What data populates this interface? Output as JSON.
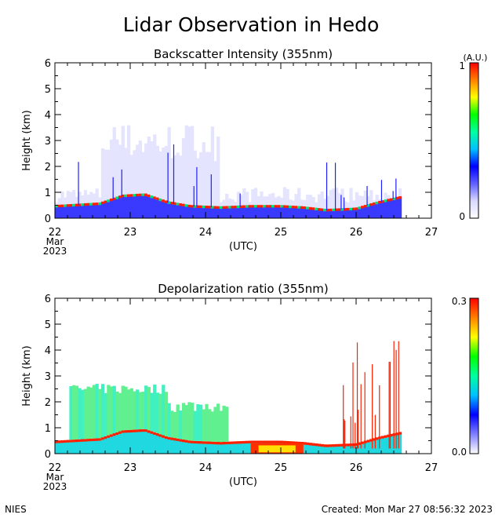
{
  "title": "Lidar Observation in Hedo",
  "footer": {
    "left": "NIES",
    "right": "Created: Mon Mar 27 08:56:32 2023"
  },
  "colors": {
    "background": "#ffffff",
    "axis": "#000000",
    "bs_colormap": [
      "#ffffff",
      "#d8d8ff",
      "#6060ff",
      "#0000ff",
      "#00c0ff",
      "#00ffa0",
      "#00ff00",
      "#ffff00",
      "#ff8000",
      "#ff0000"
    ],
    "dp_colormap": [
      "#ffffff",
      "#8080ff",
      "#0000ff",
      "#00c0ff",
      "#00ffa0",
      "#00ff00",
      "#ffff00",
      "#ff8000",
      "#ff0000"
    ]
  },
  "chart_data": [
    {
      "type": "heatmap",
      "title": "Backscatter Intensity (355nm)",
      "ylabel": "Height (km)",
      "xlabel": "(UTC)",
      "x_ticks": [
        "22",
        "23",
        "24",
        "25",
        "26",
        "27"
      ],
      "x_subtick": [
        "Mar",
        "2023"
      ],
      "xlim": [
        22,
        27
      ],
      "y_ticks": [
        "0",
        "1",
        "2",
        "3",
        "4",
        "5",
        "6"
      ],
      "ylim": [
        0,
        6
      ],
      "colorbar": {
        "unit": "(A.U.)",
        "min_label": "0",
        "max_label": "1",
        "range": [
          0,
          1
        ]
      },
      "data_end": 26.6,
      "boundary_layer_top_km": [
        [
          22.0,
          0.45
        ],
        [
          22.3,
          0.5
        ],
        [
          22.6,
          0.55
        ],
        [
          22.9,
          0.85
        ],
        [
          23.2,
          0.9
        ],
        [
          23.5,
          0.6
        ],
        [
          23.8,
          0.45
        ],
        [
          24.2,
          0.4
        ],
        [
          24.6,
          0.45
        ],
        [
          25.0,
          0.45
        ],
        [
          25.3,
          0.4
        ],
        [
          25.6,
          0.3
        ],
        [
          26.0,
          0.35
        ],
        [
          26.3,
          0.6
        ],
        [
          26.6,
          0.8
        ]
      ]
    },
    {
      "type": "heatmap",
      "title": "Depolarization ratio (355nm)",
      "ylabel": "Height (km)",
      "xlabel": "(UTC)",
      "x_ticks": [
        "22",
        "23",
        "24",
        "25",
        "26",
        "27"
      ],
      "x_subtick": [
        "Mar",
        "2023"
      ],
      "xlim": [
        22,
        27
      ],
      "y_ticks": [
        "0",
        "1",
        "2",
        "3",
        "4",
        "5",
        "6"
      ],
      "ylim": [
        0,
        6
      ],
      "colorbar": {
        "unit": "",
        "min_label": "0.0",
        "max_label": "0.3",
        "range": [
          0,
          0.3
        ]
      },
      "data_end": 26.6,
      "high_depol_event": {
        "x_range": [
          24.6,
          25.3
        ],
        "height_km": [
          0,
          0.4
        ],
        "depol": 0.22
      }
    }
  ]
}
